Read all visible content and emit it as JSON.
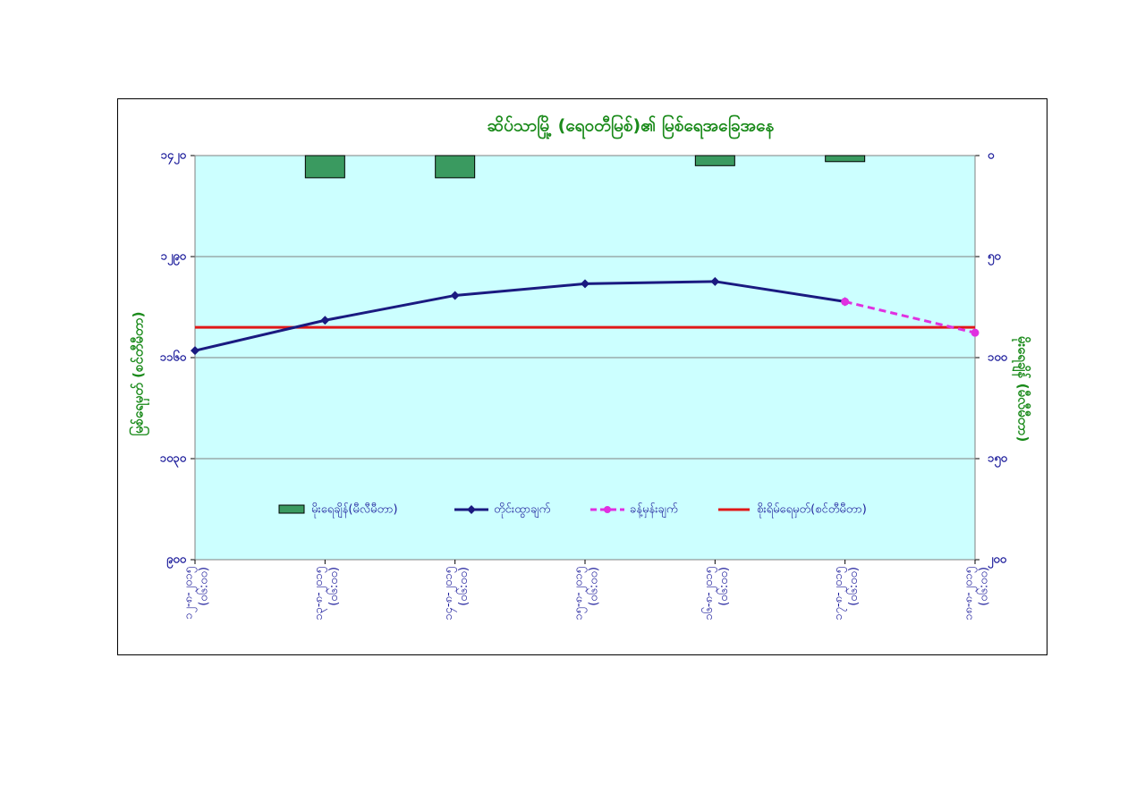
{
  "chart_data": {
    "type": "combo",
    "title": "ဆိပ်သာမြို့ (ရေဝတီမြစ်)၏ မြစ်ရေအခြေအနေ",
    "y_label": "မြစ်ရေမှတ် (စင်တီမီတာ)",
    "y2_label": "မိုးရေချိန် (မီလီမီတာ)",
    "categories": [
      [
        "၁၂-၈-၂၀၁၅",
        "(၀၆:၀၀)"
      ],
      [
        "၁၃-၈-၂၀၁၅",
        "(၀၆:၀၀)"
      ],
      [
        "၁၄-၈-၂၀၁၅",
        "(၀၆:၀၀)"
      ],
      [
        "၁၅-၈-၂၀၁၅",
        "(၀၆:၀၀)"
      ],
      [
        "၁၆-၈-၂၀၁၅",
        "(၀၆:၀၀)"
      ],
      [
        "၁၇-၈-၂၀၁၅",
        "(၀၆:၀၀)"
      ],
      [
        "၁၈-၈-၂၀၁၅",
        "(၀၆:၀၀)"
      ]
    ],
    "ylim": [
      900,
      1420
    ],
    "yticks": [
      {
        "value": 900,
        "label": "၉၀၀"
      },
      {
        "value": 1030,
        "label": "၁၀၃၀"
      },
      {
        "value": 1160,
        "label": "၁၁၆၀"
      },
      {
        "value": 1290,
        "label": "၁၂၉၀"
      },
      {
        "value": 1420,
        "label": "၁၄၂၀"
      }
    ],
    "y2lim": [
      0,
      200
    ],
    "y2_reversed": true,
    "y2ticks": [
      {
        "value": 0,
        "label": "၀"
      },
      {
        "value": 50,
        "label": "၅၀"
      },
      {
        "value": 100,
        "label": "၁၀၀"
      },
      {
        "value": 150,
        "label": "၁၅၀"
      },
      {
        "value": 200,
        "label": "၂၀၀"
      }
    ],
    "grid": true,
    "series": [
      {
        "name": "မိုးရေချိန်(မီလီမီတာ)",
        "mark": "bar",
        "axis": "y2",
        "color": "#3a9a60",
        "values": [
          0,
          11,
          11,
          0,
          5,
          3,
          0
        ]
      },
      {
        "name": "တိုင်းထွာချက်",
        "mark": "line",
        "color": "#1a1a80",
        "values": [
          1169,
          1208,
          1240,
          1255,
          1258,
          1232,
          null
        ]
      },
      {
        "name": "ခန့်မှန်းချက်",
        "mark": "dashed-line",
        "color": "#e030e0",
        "values": [
          null,
          null,
          null,
          null,
          null,
          1232,
          1192
        ]
      }
    ],
    "threshold": {
      "name": "စိုးရိမ်ရေမှတ်(စင်တီမီတာ)",
      "value": 1199,
      "color": "#e01818"
    }
  }
}
